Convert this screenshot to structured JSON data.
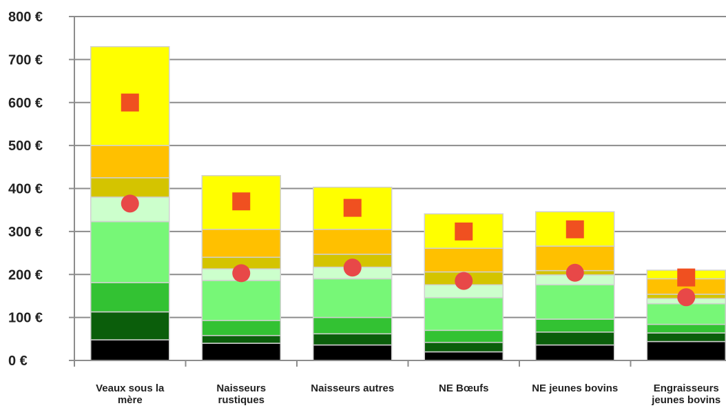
{
  "chart_data": {
    "type": "bar",
    "stacked": true,
    "categories": [
      [
        "Veaux sous la",
        "mère"
      ],
      [
        "Naisseurs",
        "rustiques"
      ],
      [
        "Naisseurs autres"
      ],
      [
        "NE Bœufs"
      ],
      [
        "NE jeunes bovins"
      ],
      [
        "Engraisseurs",
        "jeunes bovins"
      ]
    ],
    "y_ticks": [
      "0 €",
      "100 €",
      "200 €",
      "300 €",
      "400 €",
      "500 €",
      "600 €",
      "700 €",
      "800 €"
    ],
    "ylim": [
      0,
      800
    ],
    "grid": true,
    "series_colors": [
      "#000000",
      "#0b5e0b",
      "#33c233",
      "#77f777",
      "#ccffcc",
      "#d4c400",
      "#ffc000",
      "#ffff00"
    ],
    "series": [
      {
        "values": [
          48,
          40,
          36,
          20,
          36,
          44
        ]
      },
      {
        "values": [
          65,
          18,
          26,
          22,
          30,
          20
        ]
      },
      {
        "values": [
          68,
          35,
          38,
          28,
          30,
          20
        ]
      },
      {
        "values": [
          142,
          93,
          90,
          76,
          80,
          48
        ]
      },
      {
        "values": [
          57,
          27,
          27,
          30,
          23,
          12
        ]
      },
      {
        "values": [
          45,
          27,
          30,
          30,
          10,
          10
        ]
      },
      {
        "values": [
          75,
          65,
          58,
          55,
          57,
          36
        ]
      },
      {
        "values": [
          230,
          125,
          98,
          80,
          80,
          20
        ]
      }
    ],
    "markers": {
      "square": {
        "color": "#f05020",
        "values": [
          600,
          370,
          355,
          300,
          305,
          193
        ]
      },
      "circle": {
        "color": "#e84848",
        "values": [
          365,
          203,
          216,
          185,
          204,
          147
        ]
      }
    }
  }
}
